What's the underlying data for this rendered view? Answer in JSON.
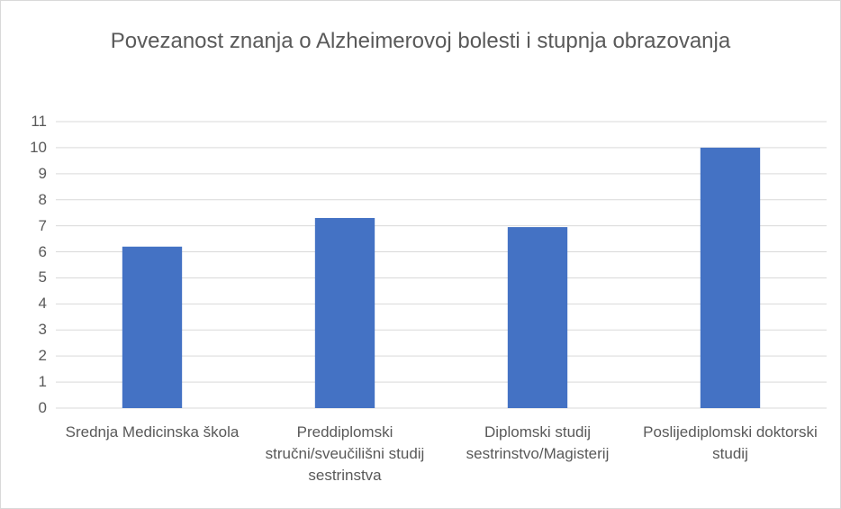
{
  "chart_data": {
    "type": "bar",
    "title": "Povezanost znanja o Alzheimerovoj bolesti i stupnja obrazovanja",
    "categories": [
      "Srednja Medicinska škola",
      "Preddiplomski stručni/sveučilišni studij sestrinstva",
      "Diplomski studij sestrinstvo/Magisterij",
      "Poslijediplomski doktorski studij"
    ],
    "values": [
      6.2,
      7.3,
      6.95,
      10
    ],
    "color": "#4472c4",
    "ylim": [
      0,
      11
    ],
    "yticks": [
      0,
      1,
      2,
      3,
      4,
      5,
      6,
      7,
      8,
      9,
      10,
      11
    ],
    "grid": true
  }
}
